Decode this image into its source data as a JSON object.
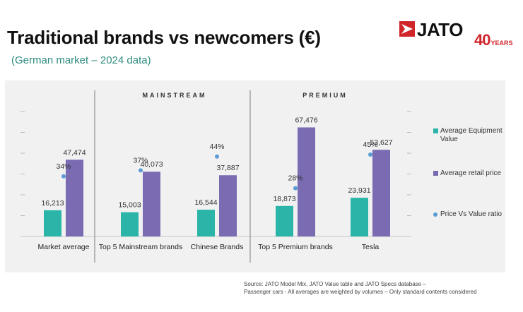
{
  "header": {
    "title": "Traditional brands vs newcomers (€)",
    "subtitle": "(German market – 2024 data)"
  },
  "logo": {
    "brand": "JATO",
    "anniversary_number": "40",
    "anniversary_label": "YEARS",
    "colors": {
      "red": "#d0262b",
      "text": "#111111"
    }
  },
  "chart_data": {
    "type": "bar",
    "title": "Traditional brands vs newcomers (€)",
    "subtitle": "(German market – 2024 data)",
    "groups": [
      {
        "label": "MAINSTREAM",
        "categories": [
          "Top 5 Mainstream brands",
          "Chinese Brands"
        ]
      },
      {
        "label": "PREMIUM",
        "categories": [
          "Top 5 Premium brands",
          "Tesla"
        ]
      }
    ],
    "categories": [
      "Market average",
      "Top 5 Mainstream brands",
      "Chinese Brands",
      "Top 5 Premium brands",
      "Tesla"
    ],
    "series": [
      {
        "name": "Average Equipment Value",
        "type": "bar",
        "color": "#2ab5a8",
        "values": [
          16213,
          15003,
          16544,
          18873,
          23931
        ],
        "labels": [
          "16,213",
          "15,003",
          "16,544",
          "18,873",
          "23,931"
        ]
      },
      {
        "name": "Average retail price",
        "type": "bar",
        "color": "#7a6bb3",
        "values": [
          47474,
          40073,
          37887,
          67476,
          53627
        ],
        "labels": [
          "47,474",
          "40,073",
          "37,887",
          "67,476",
          "53,627"
        ]
      },
      {
        "name": "Price Vs Value ratio",
        "type": "scatter",
        "color": "#5b9bd5",
        "values": [
          34,
          37,
          44,
          28,
          45
        ],
        "labels": [
          "34%",
          "37%",
          "44%",
          "28%",
          "45%"
        ]
      }
    ],
    "ylim": [
      0,
      100000
    ],
    "ratio_ylim": [
      0,
      55
    ],
    "grid": true,
    "legend": "right"
  },
  "legend": [
    {
      "label": "Average Equipment Value",
      "color": "#2ab5a8",
      "shape": "square"
    },
    {
      "label": "Average retail price",
      "color": "#7a6bb3",
      "shape": "square"
    },
    {
      "label": "Price Vs Value ratio",
      "color": "#5b9bd5",
      "shape": "dot"
    }
  ],
  "footer": {
    "source_line1": "Source: JATO Model Mix, JATO Value table and JATO Specs database –",
    "source_line2": "Passenger cars - All averages are weighted by volumes – Only standard contents considered"
  }
}
